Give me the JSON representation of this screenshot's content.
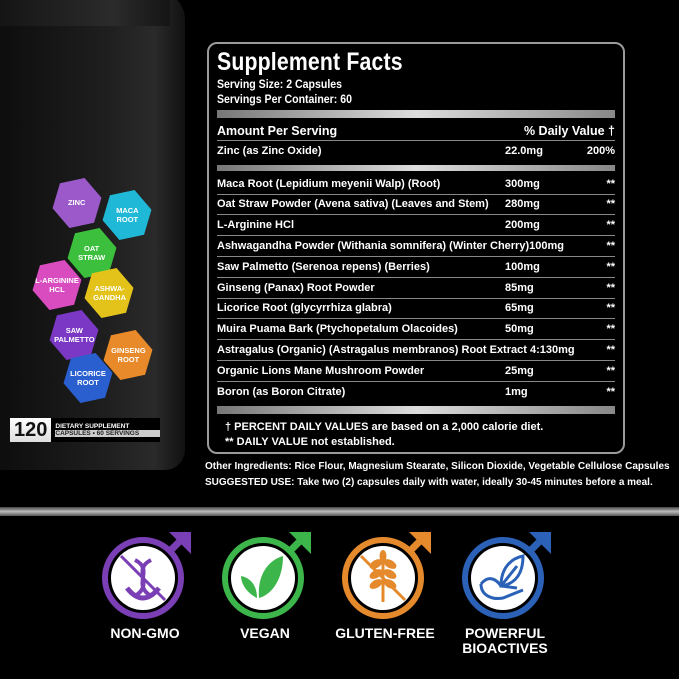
{
  "bottle": {
    "hexes": [
      {
        "label": "ZINC",
        "color": "#9b59c9"
      },
      {
        "label": "MACA\nROOT",
        "color": "#1fb8d6"
      },
      {
        "label": "OAT\nSTRAW",
        "color": "#3cbf3c"
      },
      {
        "label": "L-ARGININE\nHCL",
        "color": "#d84cc0"
      },
      {
        "label": "ASHWA-\nGANDHA",
        "color": "#e3c21a"
      },
      {
        "label": "SAW\nPALMETTO",
        "color": "#7a38c4"
      },
      {
        "label": "GINSENG\nROOT",
        "color": "#e88a2a"
      },
      {
        "label": "LICORICE\nROOT",
        "color": "#2a5fd0"
      }
    ],
    "count": "120",
    "line1": "DIETARY SUPPLEMENT",
    "line2": "CAPSULES • 60 SERVINGS"
  },
  "facts": {
    "title": "Supplement Facts",
    "serving_size": "Serving Size: 2 Capsules",
    "servings_per_container": "Servings Per Container: 60",
    "amount_header": "Amount Per Serving",
    "dv_header": "% Daily Value †",
    "zinc": {
      "name": "Zinc (as Zinc Oxide)",
      "amount": "22.0mg",
      "dv": "200%"
    },
    "rows": [
      {
        "name": "Maca Root (Lepidium meyenii Walp) (Root)",
        "amount": "300mg",
        "dv": "**"
      },
      {
        "name": "Oat Straw Powder (Avena sativa) (Leaves and Stem)",
        "amount": "280mg",
        "dv": "**"
      },
      {
        "name": "L-Arginine HCl",
        "amount": "200mg",
        "dv": "**"
      },
      {
        "name": "Ashwagandha Powder (Withania somnifera) (Winter Cherry)",
        "amount": "100mg",
        "dv": "**"
      },
      {
        "name": "Saw Palmetto (Serenoa repens) (Berries)",
        "amount": "100mg",
        "dv": "**"
      },
      {
        "name": "Ginseng (Panax) Root Powder",
        "amount": "85mg",
        "dv": "**"
      },
      {
        "name": "Licorice Root (glycyrrhiza glabra)",
        "amount": "65mg",
        "dv": "**"
      },
      {
        "name": "Muira Puama Bark (Ptychopetalum Olacoides)",
        "amount": "50mg",
        "dv": "**"
      },
      {
        "name": "Astragalus (Organic) (Astragalus membranos) Root Extract 4:1",
        "amount": "30mg",
        "dv": "**"
      },
      {
        "name": "Organic Lions Mane Mushroom Powder",
        "amount": "25mg",
        "dv": "**"
      },
      {
        "name": "Boron (as Boron Citrate)",
        "amount": "1mg",
        "dv": "**"
      }
    ],
    "footnote1": "† PERCENT DAILY VALUES are based on a 2,000 calorie diet.",
    "footnote2": "** DAILY VALUE not established."
  },
  "other_ingredients": "Other Ingredients:  Rice Flour, Magnesium Stearate, Silicon Dioxide, Vegetable Cellulose Capsules",
  "suggested_use": "SUGGESTED USE: Take two (2) capsules daily with water, ideally 30-45 minutes before a meal.",
  "badges": [
    {
      "label": "NON-GMO",
      "icon": "dna-icon",
      "color": "#7b3fb5"
    },
    {
      "label": "VEGAN",
      "icon": "leaf-icon",
      "color": "#3cb54a"
    },
    {
      "label": "GLUTEN-FREE",
      "icon": "wheat-icon",
      "color": "#e58a2c"
    },
    {
      "label": "POWERFUL\nBIOACTIVES",
      "icon": "hand-leaf-icon",
      "color": "#2b62b8"
    }
  ]
}
